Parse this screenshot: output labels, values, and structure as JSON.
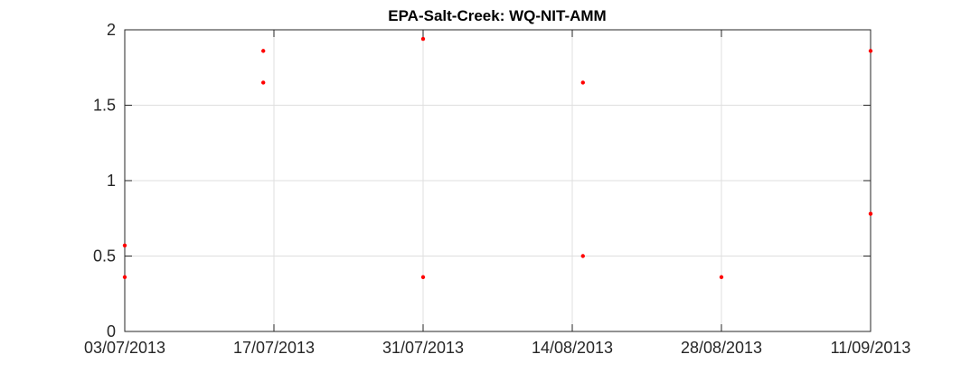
{
  "chart_data": {
    "type": "scatter",
    "title": "EPA-Salt-Creek: WQ-NIT-AMM",
    "xlabel": "",
    "ylabel": "",
    "xlim": [
      "03/07/2013",
      "11/09/2013"
    ],
    "ylim": [
      0,
      2
    ],
    "x_ticks": [
      "03/07/2013",
      "17/07/2013",
      "31/07/2013",
      "14/08/2013",
      "28/08/2013",
      "11/09/2013"
    ],
    "y_ticks": [
      "0",
      "0.5",
      "1",
      "1.5",
      "2"
    ],
    "grid": true,
    "marker_color": "#ff0000",
    "points": [
      {
        "x": "03/07/2013",
        "y": 0.57
      },
      {
        "x": "03/07/2013",
        "y": 0.36
      },
      {
        "x": "16/07/2013",
        "y": 1.86
      },
      {
        "x": "16/07/2013",
        "y": 1.65
      },
      {
        "x": "31/07/2013",
        "y": 1.94
      },
      {
        "x": "31/07/2013",
        "y": 0.36
      },
      {
        "x": "15/08/2013",
        "y": 1.65
      },
      {
        "x": "15/08/2013",
        "y": 0.5
      },
      {
        "x": "28/08/2013",
        "y": 0.36
      },
      {
        "x": "11/09/2013",
        "y": 1.86
      },
      {
        "x": "11/09/2013",
        "y": 0.78
      }
    ]
  }
}
